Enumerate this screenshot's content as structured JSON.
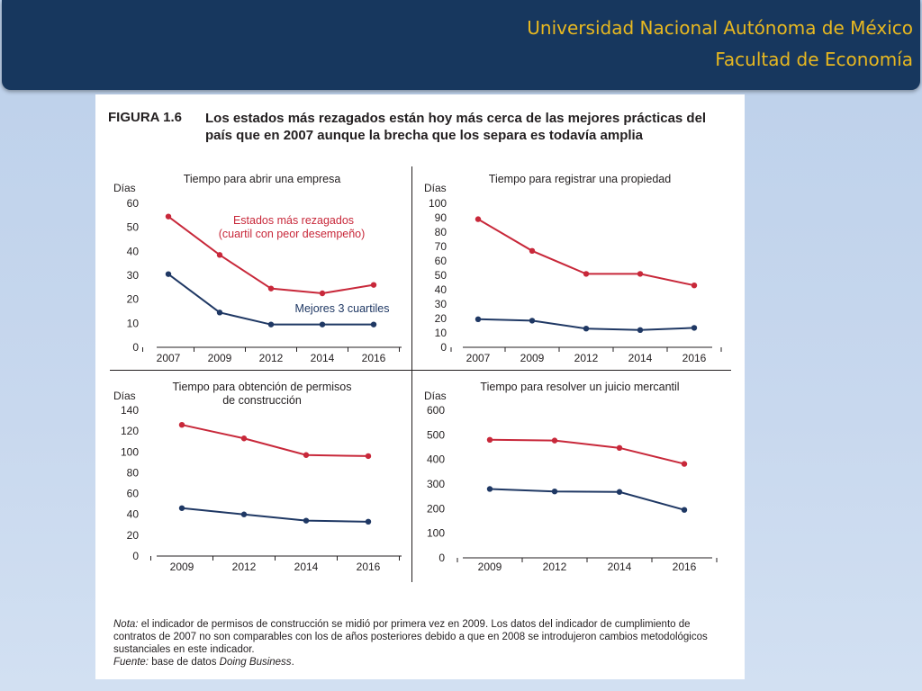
{
  "header": {
    "line1": "Universidad Nacional Autónoma de México",
    "line2": "Facultad de Economía"
  },
  "figure": {
    "number": "FIGURA 1.6",
    "title": "Los estados más rezagados están hoy más cerca de las mejores prácticas del país que en 2007 aunque la brecha que los separa es todavía amplia"
  },
  "notes": {
    "nota_label": "Nota:",
    "nota_text": " el indicador de permisos de construcción se midió por primera vez en 2009. Los datos del indicador de cumplimiento de contratos de 2007 no son comparables con los de años posteriores debido a que en 2008 se introdujeron cambios metodológicos sustanciales en este indicador.",
    "fuente_label": "Fuente:",
    "fuente_text": " base de datos ",
    "fuente_source": "Doing Business",
    "fuente_end": "."
  },
  "colors": {
    "red": "#c8283a",
    "blue": "#1f3864"
  },
  "chart_data": [
    {
      "type": "line",
      "title": "Tiempo para abrir una empresa",
      "ylabel": "Días",
      "categories": [
        "2007",
        "2009",
        "2012",
        "2014",
        "2016"
      ],
      "ylim": [
        0,
        60
      ],
      "yticks": [
        0,
        10,
        20,
        30,
        40,
        50,
        60
      ],
      "series": [
        {
          "name": "Estados más rezagados (cuartil con peor desempeño)",
          "color": "red",
          "values": [
            54.5,
            38.5,
            24.5,
            22.5,
            26
          ]
        },
        {
          "name": "Mejores 3 cuartiles",
          "color": "blue",
          "values": [
            30.5,
            14.5,
            9.5,
            9.5,
            9.5
          ]
        }
      ],
      "annotations": [
        "Estados más rezagados",
        "(cuartil con peor desempeño)",
        "Mejores 3 cuartiles"
      ]
    },
    {
      "type": "line",
      "title": "Tiempo para registrar una propiedad",
      "ylabel": "Días",
      "categories": [
        "2007",
        "2009",
        "2012",
        "2014",
        "2016"
      ],
      "ylim": [
        0,
        100
      ],
      "yticks": [
        0,
        10,
        20,
        30,
        40,
        50,
        60,
        70,
        80,
        90,
        100
      ],
      "series": [
        {
          "color": "red",
          "values": [
            89,
            67,
            51,
            51,
            43
          ]
        },
        {
          "color": "blue",
          "values": [
            19.5,
            18.5,
            13,
            12,
            13.5
          ]
        }
      ]
    },
    {
      "type": "line",
      "title": "Tiempo para obtención de permisos de construcción",
      "title_lines": [
        "Tiempo para obtención de permisos",
        "de construcción"
      ],
      "ylabel": "Días",
      "categories": [
        "2009",
        "2012",
        "2014",
        "2016"
      ],
      "ylim": [
        0,
        140
      ],
      "yticks": [
        0,
        20,
        40,
        60,
        80,
        100,
        120,
        140
      ],
      "series": [
        {
          "color": "red",
          "values": [
            126,
            113,
            97,
            96
          ]
        },
        {
          "color": "blue",
          "values": [
            46,
            40,
            34,
            33
          ]
        }
      ]
    },
    {
      "type": "line",
      "title": "Tiempo para resolver un juicio mercantil",
      "ylabel": "Días",
      "categories": [
        "2009",
        "2012",
        "2014",
        "2016"
      ],
      "ylim": [
        0,
        600
      ],
      "yticks": [
        0,
        100,
        200,
        300,
        400,
        500,
        600
      ],
      "series": [
        {
          "color": "red",
          "values": [
            480,
            477,
            447,
            382
          ]
        },
        {
          "color": "blue",
          "values": [
            280,
            270,
            268,
            195
          ]
        }
      ]
    }
  ]
}
